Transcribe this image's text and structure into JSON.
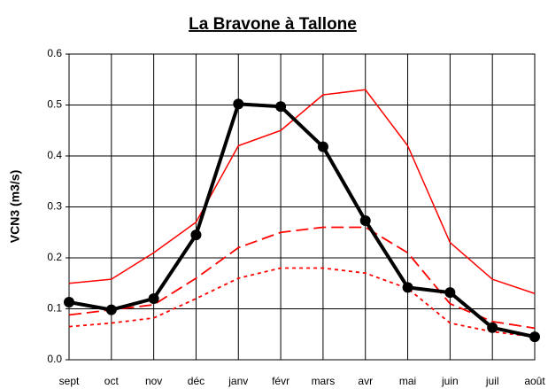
{
  "chart_data": {
    "type": "line",
    "title": "La Bravone à Tallone",
    "y_label": "VCN3 (m3/s)",
    "categories": [
      "sept",
      "oct",
      "nov",
      "déc",
      "janv",
      "févr",
      "mars",
      "avr",
      "mai",
      "juin",
      "juil",
      "août"
    ],
    "series": [
      {
        "color": "#ff0000",
        "dash": "solid",
        "width": 1.5,
        "markers": false,
        "values": [
          0.15,
          0.158,
          0.21,
          0.27,
          0.42,
          0.45,
          0.52,
          0.53,
          0.42,
          0.23,
          0.158,
          0.13
        ]
      },
      {
        "color": "#ff0000",
        "dash": "dashed",
        "width": 1.8,
        "markers": false,
        "values": [
          0.088,
          0.098,
          0.108,
          0.16,
          0.22,
          0.25,
          0.26,
          0.26,
          0.21,
          0.11,
          0.075,
          0.062
        ]
      },
      {
        "color": "#ff0000",
        "dash": "dotted",
        "width": 1.8,
        "markers": false,
        "values": [
          0.065,
          0.072,
          0.082,
          0.12,
          0.16,
          0.18,
          0.18,
          0.17,
          0.14,
          0.072,
          0.055,
          0.045
        ]
      },
      {
        "color": "#000000",
        "dash": "solid",
        "width": 4,
        "markers": true,
        "values": [
          0.113,
          0.098,
          0.12,
          0.245,
          0.502,
          0.497,
          0.418,
          0.273,
          0.142,
          0.132,
          0.063,
          0.045
        ]
      }
    ],
    "ylim": [
      0,
      0.6
    ],
    "yticks": [
      {
        "value": 0,
        "label": "0.0"
      },
      0.1,
      0.2,
      0.3,
      0.4,
      0.5,
      0.6
    ],
    "grid": true
  }
}
